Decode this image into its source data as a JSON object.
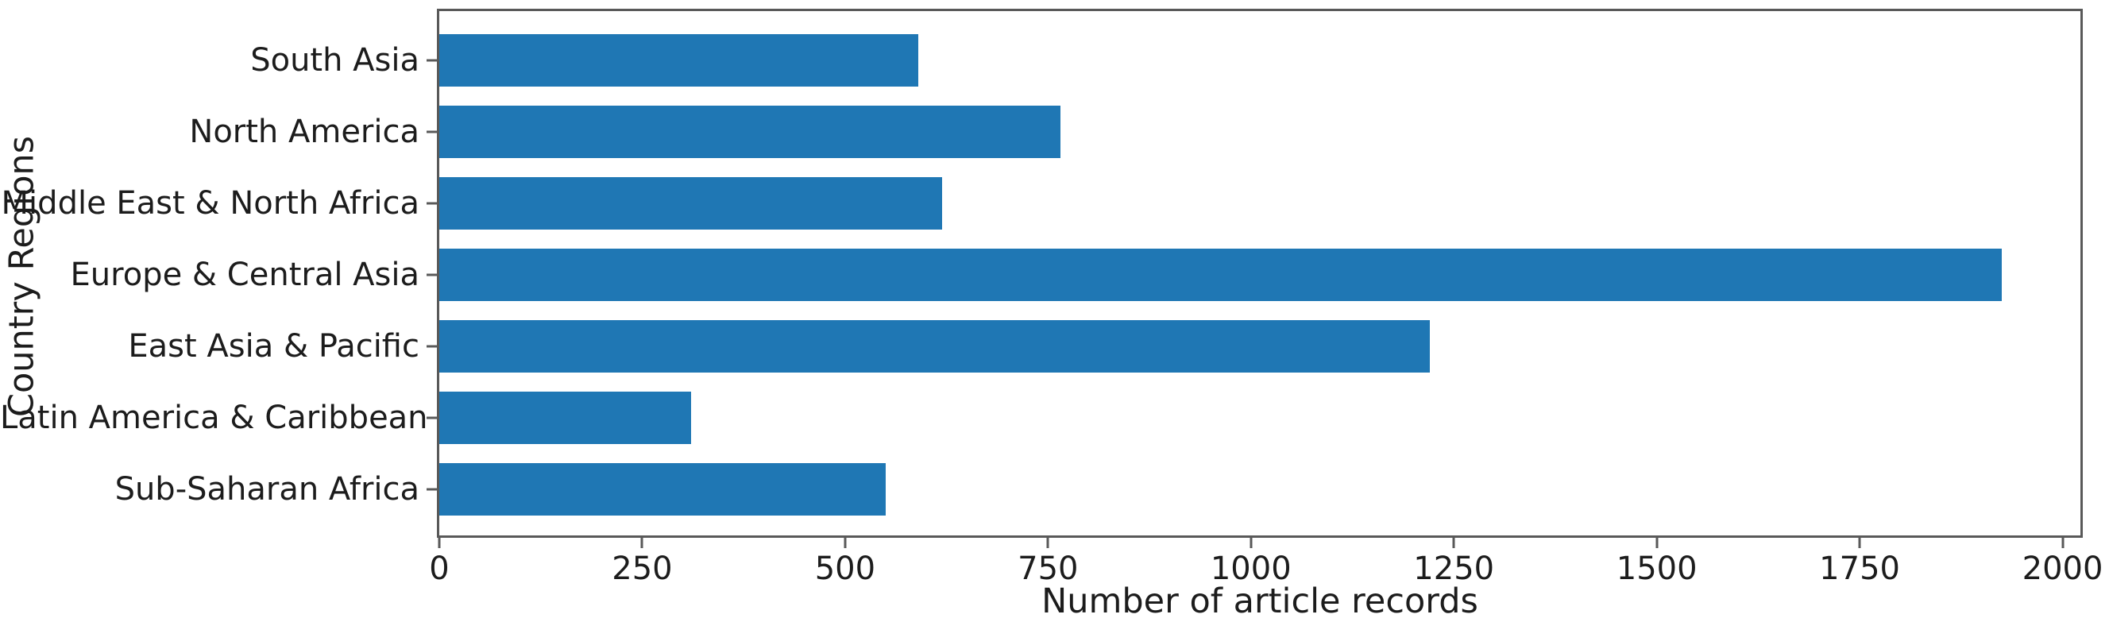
{
  "chart_data": {
    "type": "bar",
    "orientation": "horizontal",
    "title": "",
    "xlabel": "Number of article records",
    "ylabel": "Country Regions",
    "categories": [
      "South Asia",
      "North America",
      "Middle East & North Africa",
      "Europe & Central Asia",
      "East Asia & Pacific",
      "Latin America & Caribbean",
      "Sub-Saharan Africa"
    ],
    "values": [
      590,
      765,
      620,
      1925,
      1220,
      310,
      550
    ],
    "xlim": [
      0,
      2022
    ],
    "x_ticks": [
      0,
      250,
      500,
      750,
      1000,
      1250,
      1500,
      1750,
      2000
    ],
    "bar_color": "#1f77b4",
    "axis_color": "#595959",
    "text_color": "#1c1c1c",
    "grid": false,
    "legend": "none"
  }
}
